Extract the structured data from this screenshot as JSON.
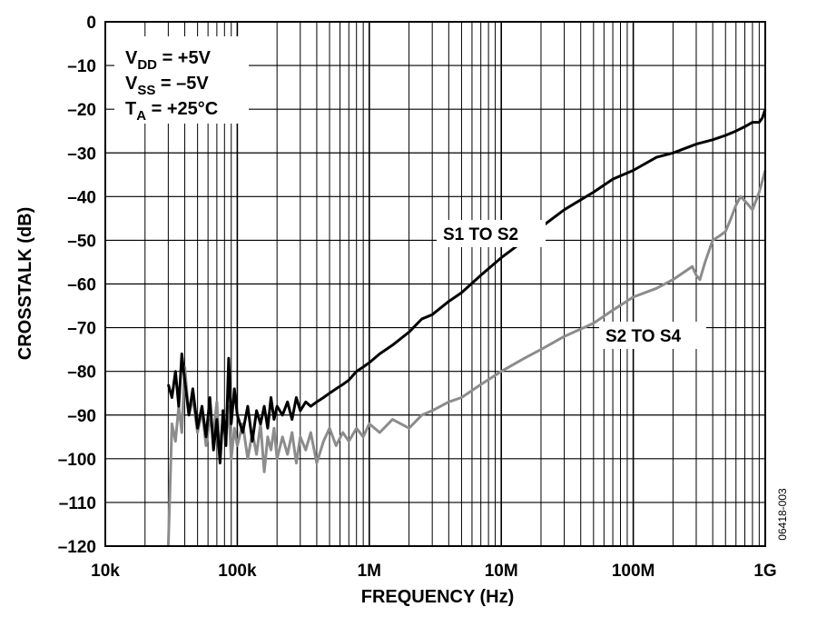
{
  "chart_data": {
    "type": "line",
    "title": "",
    "xlabel": "FREQUENCY (Hz)",
    "ylabel": "CROSSTALK (dB)",
    "x_scale": "log",
    "xlim": [
      10000,
      1000000000
    ],
    "ylim": [
      -120,
      0
    ],
    "grid": true,
    "x_ticks": [
      {
        "value": 10000,
        "label": "10k"
      },
      {
        "value": 100000,
        "label": "100k"
      },
      {
        "value": 1000000,
        "label": "1M"
      },
      {
        "value": 10000000,
        "label": "10M"
      },
      {
        "value": 100000000,
        "label": "100M"
      },
      {
        "value": 1000000000,
        "label": "1G"
      }
    ],
    "y_ticks": [
      {
        "value": 0,
        "label": "0"
      },
      {
        "value": -10,
        "label": "–10"
      },
      {
        "value": -20,
        "label": "–20"
      },
      {
        "value": -30,
        "label": "–30"
      },
      {
        "value": -40,
        "label": "–40"
      },
      {
        "value": -50,
        "label": "–50"
      },
      {
        "value": -60,
        "label": "–60"
      },
      {
        "value": -70,
        "label": "–70"
      },
      {
        "value": -80,
        "label": "–80"
      },
      {
        "value": -90,
        "label": "–90"
      },
      {
        "value": -100,
        "label": "–100"
      },
      {
        "value": -110,
        "label": "–110"
      },
      {
        "value": -120,
        "label": "–120"
      }
    ],
    "conditions": [
      {
        "main": "V",
        "sub": "DD",
        "rest": " = +5V"
      },
      {
        "main": "V",
        "sub": "SS",
        "rest": " = –5V"
      },
      {
        "main": "T",
        "sub": "A",
        "rest": " = +25°C"
      }
    ],
    "figure_id": "06418-003",
    "series": [
      {
        "name": "S1 TO S2",
        "color": "#000000",
        "x": [
          30000,
          32000,
          34000,
          36000,
          38000,
          40000,
          43000,
          46000,
          50000,
          54000,
          58000,
          62000,
          66000,
          70000,
          74000,
          78000,
          82000,
          86000,
          90000,
          95000,
          100000,
          110000,
          120000,
          130000,
          140000,
          150000,
          160000,
          170000,
          180000,
          190000,
          200000,
          220000,
          240000,
          260000,
          280000,
          300000,
          330000,
          360000,
          400000,
          450000,
          500000,
          560000,
          630000,
          700000,
          800000,
          900000,
          1000000,
          1200000,
          1500000,
          2000000,
          2500000,
          3000000,
          4000000,
          5000000,
          7000000,
          10000000,
          15000000,
          20000000,
          30000000,
          50000000,
          70000000,
          100000000,
          150000000,
          200000000,
          300000000,
          400000000,
          500000000,
          600000000,
          700000000,
          800000000,
          900000000,
          950000000,
          1000000000
        ],
        "values": [
          -83,
          -86,
          -80,
          -88,
          -76,
          -82,
          -90,
          -84,
          -93,
          -88,
          -95,
          -86,
          -98,
          -91,
          -101,
          -89,
          -97,
          -77,
          -92,
          -84,
          -90,
          -94,
          -88,
          -96,
          -89,
          -92,
          -88,
          -93,
          -86,
          -91,
          -88,
          -90,
          -87,
          -91,
          -86,
          -89,
          -87,
          -88,
          -87,
          -86,
          -85,
          -84,
          -83,
          -82,
          -80,
          -79,
          -78,
          -76,
          -74,
          -71,
          -68,
          -67,
          -64,
          -62,
          -58,
          -54,
          -50,
          -47,
          -43,
          -39,
          -36,
          -34,
          -31,
          -30,
          -28,
          -27,
          -26,
          -25,
          -24,
          -23,
          -23,
          -22,
          -20
        ]
      },
      {
        "name": "S2 TO S4",
        "color": "#8c8c8c",
        "x": [
          30000,
          32000,
          34000,
          36000,
          38000,
          40000,
          43000,
          46000,
          50000,
          54000,
          58000,
          62000,
          66000,
          70000,
          74000,
          78000,
          82000,
          86000,
          90000,
          95000,
          100000,
          110000,
          120000,
          130000,
          140000,
          150000,
          160000,
          170000,
          180000,
          190000,
          200000,
          220000,
          240000,
          260000,
          280000,
          300000,
          330000,
          360000,
          400000,
          450000,
          500000,
          560000,
          630000,
          700000,
          800000,
          900000,
          1000000,
          1200000,
          1500000,
          2000000,
          2500000,
          3000000,
          4000000,
          5000000,
          7000000,
          10000000,
          15000000,
          20000000,
          30000000,
          50000000,
          70000000,
          100000000,
          150000000,
          200000000,
          250000000,
          280000000,
          300000000,
          320000000,
          350000000,
          400000000,
          450000000,
          500000000,
          550000000,
          600000000,
          650000000,
          700000000,
          750000000,
          800000000,
          850000000,
          900000000,
          1000000000
        ],
        "values": [
          -120,
          -92,
          -96,
          -88,
          -94,
          -79,
          -90,
          -86,
          -94,
          -89,
          -97,
          -91,
          -94,
          -87,
          -100,
          -90,
          -95,
          -88,
          -100,
          -93,
          -97,
          -92,
          -100,
          -94,
          -99,
          -92,
          -103,
          -95,
          -98,
          -93,
          -100,
          -95,
          -99,
          -94,
          -101,
          -95,
          -98,
          -94,
          -101,
          -96,
          -93,
          -97,
          -94,
          -96,
          -93,
          -95,
          -92,
          -94,
          -91,
          -93,
          -90,
          -89,
          -87,
          -86,
          -83,
          -80,
          -77,
          -75,
          -72,
          -69,
          -66,
          -63,
          -61,
          -59,
          -57,
          -56,
          -58,
          -59,
          -55,
          -50,
          -49,
          -48,
          -45,
          -42,
          -40,
          -41,
          -42,
          -43,
          -41,
          -39,
          -34
        ]
      }
    ]
  }
}
